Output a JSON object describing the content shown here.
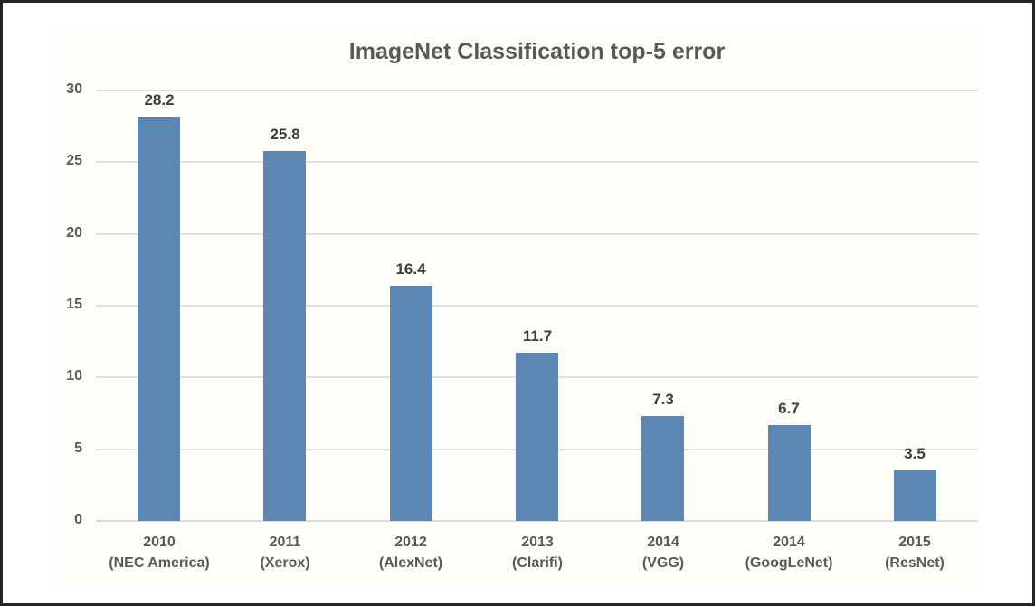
{
  "chart_data": {
    "type": "bar",
    "title": "ImageNet Classification top-5 error",
    "categories": [
      {
        "year": "2010",
        "system": "(NEC America)"
      },
      {
        "year": "2011",
        "system": "(Xerox)"
      },
      {
        "year": "2012",
        "system": "(AlexNet)"
      },
      {
        "year": "2013",
        "system": "(Clarifi)"
      },
      {
        "year": "2014",
        "system": "(VGG)"
      },
      {
        "year": "2014",
        "system": "(GoogLeNet)"
      },
      {
        "year": "2015",
        "system": "(ResNet)"
      }
    ],
    "values": [
      28.2,
      25.8,
      16.4,
      11.7,
      7.3,
      6.7,
      3.5
    ],
    "value_labels": [
      "28.2",
      "25.8",
      "16.4",
      "11.7",
      "7.3",
      "6.7",
      "3.5"
    ],
    "yticks": [
      0,
      5,
      10,
      15,
      20,
      25,
      30
    ],
    "ylim": [
      0,
      30
    ],
    "xlabel": "",
    "ylabel": "",
    "grid": true,
    "legend": "none",
    "colors": {
      "bar_fill": "#5b87b2",
      "gridline": "#e0dfdc",
      "title_text": "#595959",
      "axis_text": "#595959",
      "value_label_text": "#3d3d3d",
      "frame_border": "#242424",
      "chart_background": "#fffdf8"
    }
  }
}
